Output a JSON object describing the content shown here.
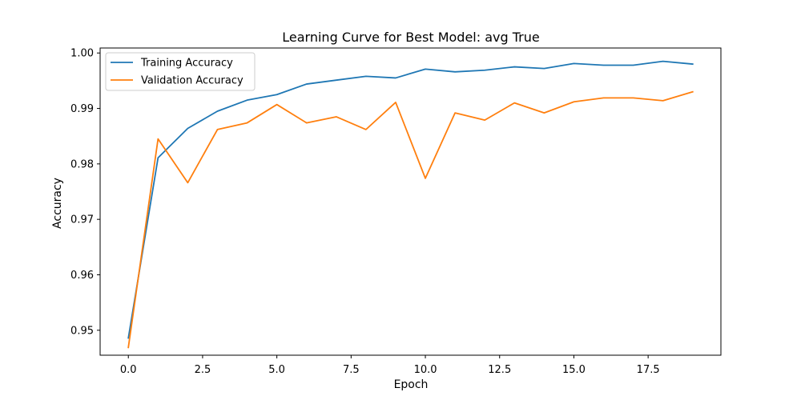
{
  "chart_data": {
    "type": "line",
    "title": "Learning Curve for Best Model: avg True",
    "xlabel": "Epoch",
    "ylabel": "Accuracy",
    "xlim": [
      -0.95,
      19.95
    ],
    "ylim": [
      0.9455,
      1.0009
    ],
    "xticks": [
      0.0,
      2.5,
      5.0,
      7.5,
      10.0,
      12.5,
      15.0,
      17.5
    ],
    "xtick_labels": [
      "0.0",
      "2.5",
      "5.0",
      "7.5",
      "10.0",
      "12.5",
      "15.0",
      "17.5"
    ],
    "yticks": [
      0.95,
      0.96,
      0.97,
      0.98,
      0.99,
      1.0
    ],
    "ytick_labels": [
      "0.95",
      "0.96",
      "0.97",
      "0.98",
      "0.99",
      "1.00"
    ],
    "grid": false,
    "legend_position": "upper-left",
    "x": [
      0,
      1,
      2,
      3,
      4,
      5,
      6,
      7,
      8,
      9,
      10,
      11,
      12,
      13,
      14,
      15,
      16,
      17,
      18,
      19
    ],
    "series": [
      {
        "name": "Training Accuracy",
        "color": "#1f77b4",
        "values": [
          0.9486,
          0.9811,
          0.9864,
          0.9895,
          0.9915,
          0.9925,
          0.9944,
          0.9951,
          0.9958,
          0.9955,
          0.9971,
          0.9966,
          0.9969,
          0.9975,
          0.9972,
          0.9981,
          0.9978,
          0.9978,
          0.9985,
          0.998
        ]
      },
      {
        "name": "Validation Accuracy",
        "color": "#ff7f0e",
        "values": [
          0.9469,
          0.9845,
          0.9766,
          0.9862,
          0.9874,
          0.9907,
          0.9874,
          0.9885,
          0.9862,
          0.9911,
          0.9774,
          0.9892,
          0.9879,
          0.991,
          0.9892,
          0.9912,
          0.9919,
          0.9919,
          0.9914,
          0.993
        ]
      }
    ]
  }
}
